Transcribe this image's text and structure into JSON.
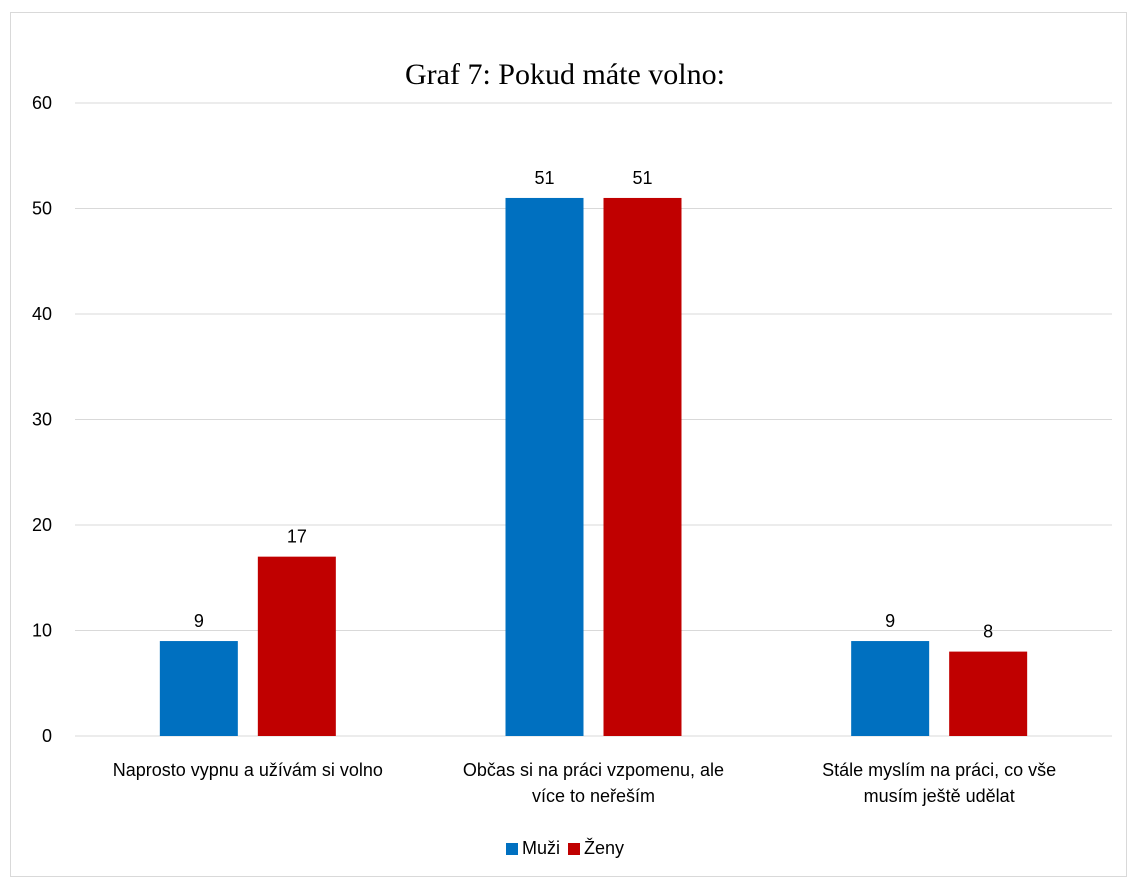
{
  "chart_data": {
    "type": "bar",
    "title": "Graf 7: Pokud máte volno:",
    "categories": [
      [
        "Naprosto vypnu a užívám si volno"
      ],
      [
        "Občas si na práci vzpomenu, ale",
        "více to neřeším"
      ],
      [
        "Stále myslím na práci, co vše",
        "musím ještě udělat"
      ]
    ],
    "series": [
      {
        "name": "Muži",
        "color": "#0070C0",
        "values": [
          9,
          51,
          9
        ]
      },
      {
        "name": "Ženy",
        "color": "#C00000",
        "values": [
          17,
          51,
          8
        ]
      }
    ],
    "ylim": [
      0,
      60
    ],
    "yticks": [
      0,
      10,
      20,
      30,
      40,
      50,
      60
    ],
    "grid": true,
    "gridColor": "#d9d9d9",
    "legend": "bottom"
  }
}
